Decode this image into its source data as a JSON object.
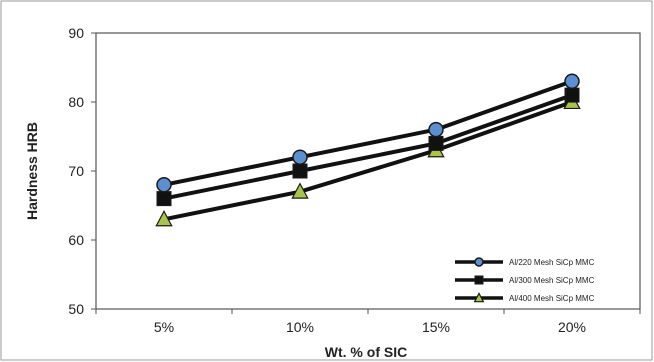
{
  "chart_data": {
    "type": "line",
    "categories": [
      "5%",
      "10%",
      "15%",
      "20%"
    ],
    "xlabel": "Wt. % of SIC",
    "ylabel": "Hardness HRB",
    "ylim": [
      50,
      90
    ],
    "yticks": [
      50,
      60,
      70,
      80,
      90
    ],
    "grid": false,
    "legend_position": "bottom-right",
    "series": [
      {
        "name": "Al/220 Mesh SiCp MMC",
        "marker": "circle",
        "marker_color": "#5b8fd0",
        "values": [
          68,
          72,
          76,
          83
        ]
      },
      {
        "name": "Al/300 Mesh SiCp MMC",
        "marker": "square",
        "marker_color": "#111111",
        "values": [
          66,
          70,
          74,
          81
        ]
      },
      {
        "name": "Al/400 Mesh SiCp MMC",
        "marker": "triangle",
        "marker_color": "#a9c44a",
        "values": [
          63,
          67,
          73,
          80
        ]
      }
    ],
    "colors": {
      "line": "#111111",
      "frame": "#555555"
    }
  }
}
